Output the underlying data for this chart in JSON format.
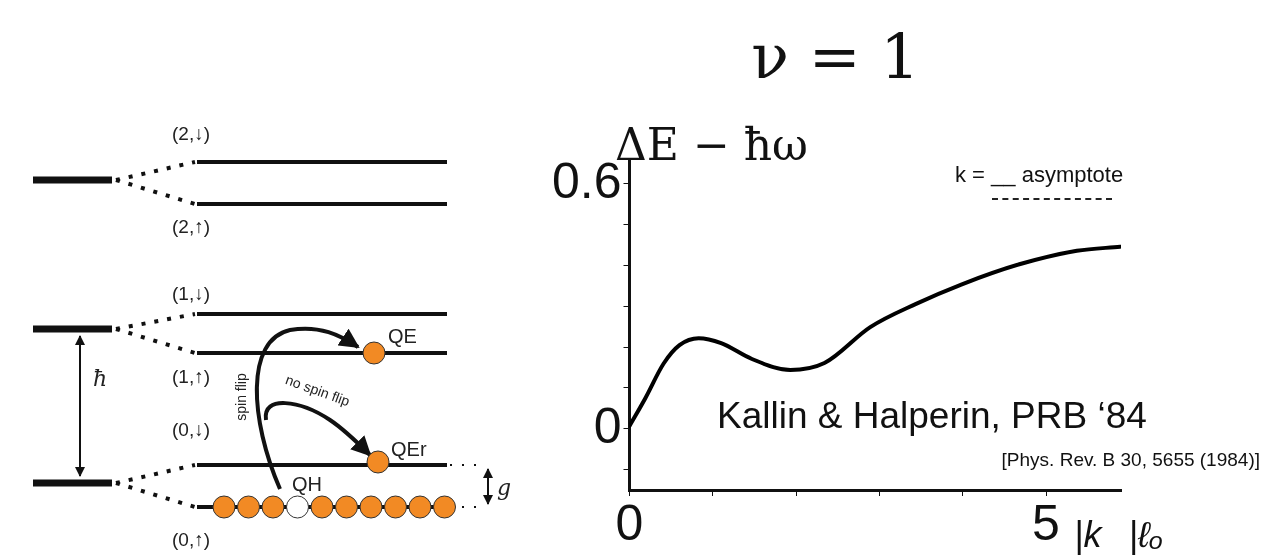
{
  "chart_data": [
    {
      "type": "other",
      "annotations": [
        "(2,↓)",
        "(2,↑)",
        "(1,↓)",
        "(1,↑)",
        "(0,↓)",
        "(0,↑)",
        "ħ",
        "QE",
        "QEr",
        "QH",
        "spin flip",
        "no spin flip",
        "g"
      ]
    },
    {
      "type": "line",
      "title": "ν = 1",
      "ylabel": "ΔE − ħω",
      "xlabel": "|k⃗|ℓₒ",
      "annotations": [
        "k = __ asymptote",
        "Kallin & Halperin, PRB ‘84",
        "[Phys. Rev. B 30, 5655 (1984)]"
      ],
      "x": [
        0,
        0.19,
        0.41,
        0.6,
        0.83,
        1.1,
        1.47,
        1.93,
        2.34,
        2.89,
        3.44,
        3.99,
        4.68,
        5.37,
        5.89
      ],
      "series": [
        {
          "color": "#000000",
          "values": [
            0.007,
            0.075,
            0.16,
            0.205,
            0.222,
            0.21,
            0.171,
            0.144,
            0.161,
            0.249,
            0.306,
            0.354,
            0.403,
            0.436,
            0.446
          ]
        }
      ],
      "xlim": [
        0,
        5.9
      ],
      "ylim": [
        -0.15,
        0.66
      ],
      "xticks": [
        0,
        {
          "value": 1,
          "label": null
        },
        {
          "value": 2,
          "label": null
        },
        {
          "value": 3,
          "label": null
        },
        {
          "value": 4,
          "label": null
        },
        5
      ],
      "yticks": [
        {
          "value": -0.1,
          "label": null
        },
        0,
        {
          "value": 0.1,
          "label": null
        },
        {
          "value": 0.2,
          "label": null
        },
        {
          "value": 0.3,
          "label": null
        },
        {
          "value": 0.4,
          "label": null
        },
        {
          "value": 0.5,
          "label": null
        },
        0.6
      ],
      "grid": false,
      "legend": false,
      "marker": "none",
      "line_style": "solid"
    }
  ]
}
